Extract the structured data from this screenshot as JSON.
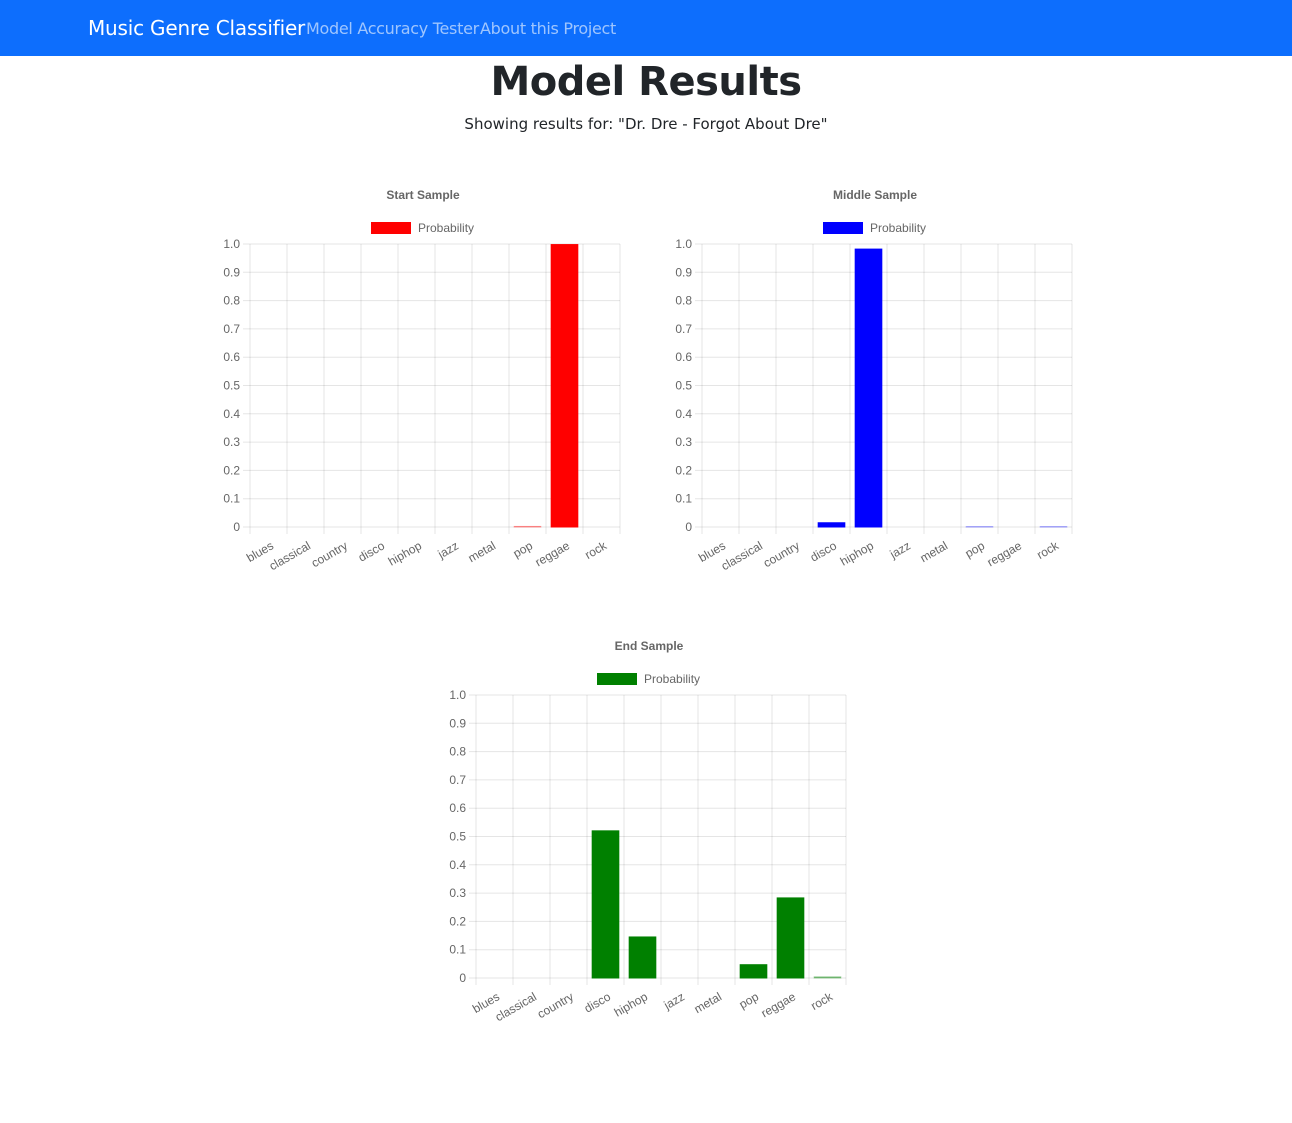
{
  "navbar": {
    "brand": "Music Genre Classifier",
    "links": [
      {
        "label": "Model Accuracy Tester"
      },
      {
        "label": "About this Project"
      }
    ],
    "bg_color": "#0d6efd"
  },
  "main": {
    "title": "Model Results",
    "subtitle": "Showing results for: \"Dr. Dre - Forgot About Dre\""
  },
  "chart_data": [
    {
      "type": "bar",
      "title": "Start Sample",
      "categories": [
        "blues",
        "classical",
        "country",
        "disco",
        "hiphop",
        "jazz",
        "metal",
        "pop",
        "reggae",
        "rock"
      ],
      "series": [
        {
          "name": "Probability",
          "color": "#ff0000",
          "values": [
            0,
            0,
            0,
            0,
            0,
            0,
            0,
            0.002,
            0.998,
            0
          ]
        }
      ],
      "ylim": [
        0,
        1.0
      ],
      "yticks": [
        "0",
        "0.1",
        "0.2",
        "0.3",
        "0.4",
        "0.5",
        "0.6",
        "0.7",
        "0.8",
        "0.9",
        "1.0"
      ],
      "legend": "top",
      "grid": true
    },
    {
      "type": "bar",
      "title": "Middle Sample",
      "categories": [
        "blues",
        "classical",
        "country",
        "disco",
        "hiphop",
        "jazz",
        "metal",
        "pop",
        "reggae",
        "rock"
      ],
      "series": [
        {
          "name": "Probability",
          "color": "#0000ff",
          "values": [
            0,
            0,
            0,
            0.015,
            0.982,
            0,
            0,
            0.001,
            0,
            0.001
          ]
        }
      ],
      "ylim": [
        0,
        1.0
      ],
      "yticks": [
        "0",
        "0.1",
        "0.2",
        "0.3",
        "0.4",
        "0.5",
        "0.6",
        "0.7",
        "0.8",
        "0.9",
        "1.0"
      ],
      "legend": "top",
      "grid": true
    },
    {
      "type": "bar",
      "title": "End Sample",
      "categories": [
        "blues",
        "classical",
        "country",
        "disco",
        "hiphop",
        "jazz",
        "metal",
        "pop",
        "reggae",
        "rock"
      ],
      "series": [
        {
          "name": "Probability",
          "color": "#008000",
          "values": [
            0,
            0,
            0,
            0.52,
            0.145,
            0,
            0,
            0.047,
            0.283,
            0.004
          ]
        }
      ],
      "ylim": [
        0,
        1.0
      ],
      "yticks": [
        "0",
        "0.1",
        "0.2",
        "0.3",
        "0.4",
        "0.5",
        "0.6",
        "0.7",
        "0.8",
        "0.9",
        "1.0"
      ],
      "legend": "top",
      "grid": true
    }
  ]
}
